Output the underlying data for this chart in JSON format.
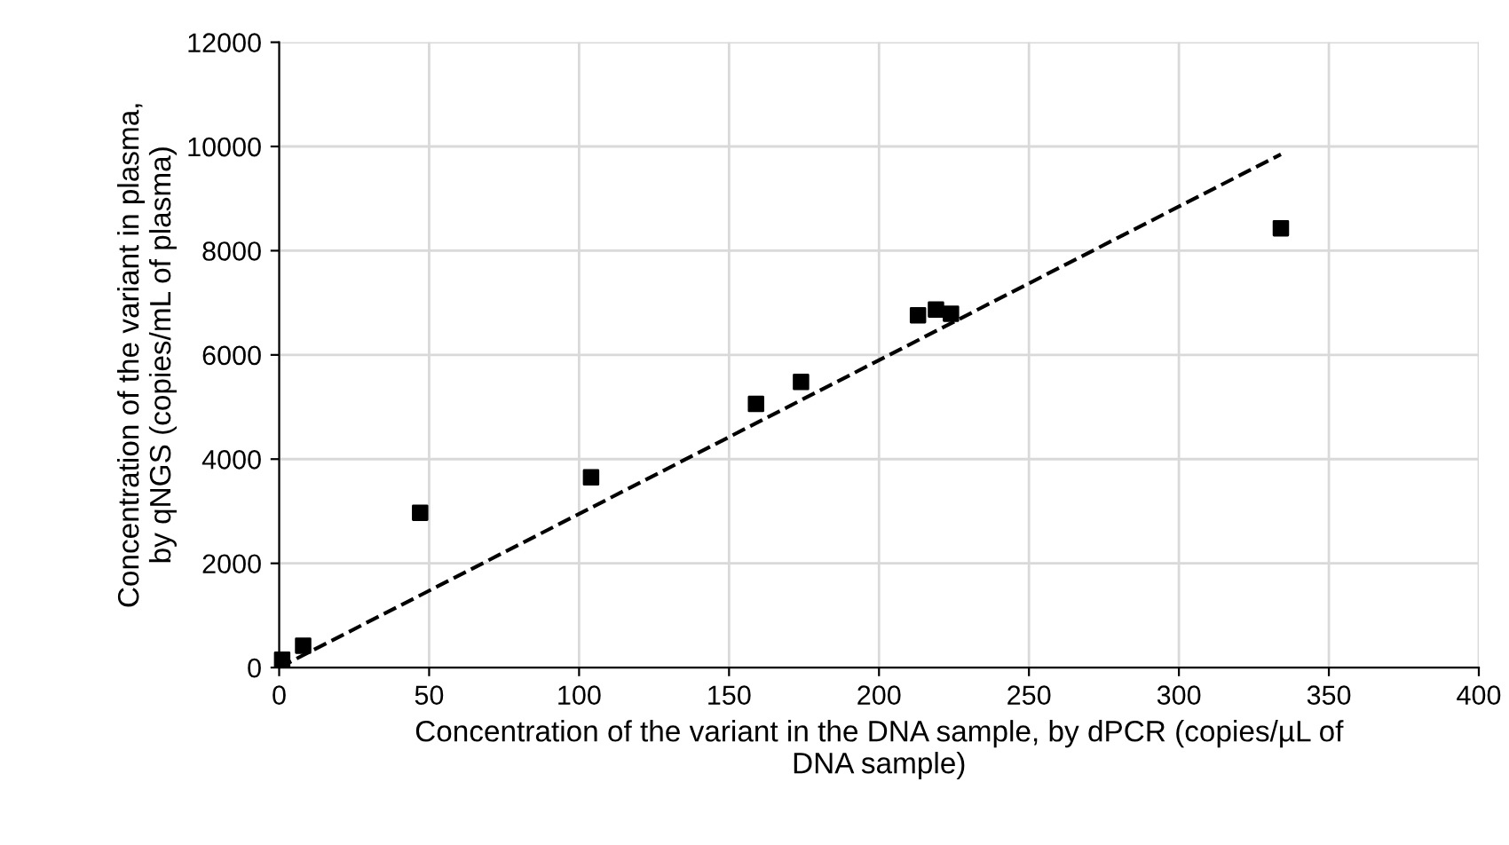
{
  "chart_data": {
    "type": "scatter",
    "xlabel": "Concentration of the variant in the DNA sample, by dPCR (copies/µL of\nDNA sample)",
    "ylabel": "Concentration of the variant in plasma,\nby qNGS (copies/mL of plasma)",
    "series": [
      {
        "color": "#000000",
        "marker": "square",
        "x": [
          1,
          8,
          47,
          104,
          159,
          174,
          213,
          219,
          224,
          334
        ],
        "values": [
          150,
          420,
          2970,
          3650,
          5060,
          5480,
          6760,
          6870,
          6790,
          8430
        ]
      },
      {
        "type": "line",
        "color": "#000000",
        "line_style": "dashed",
        "marker": "none",
        "x": [
          0,
          334
        ],
        "values": [
          0,
          9850
        ]
      }
    ],
    "xlim": [
      0,
      400
    ],
    "xticks": [
      0,
      50,
      100,
      150,
      200,
      250,
      300,
      350,
      400
    ],
    "ylim": [
      0,
      12000
    ],
    "yticks": [
      0,
      2000,
      4000,
      6000,
      8000,
      10000,
      12000
    ],
    "grid": true
  }
}
